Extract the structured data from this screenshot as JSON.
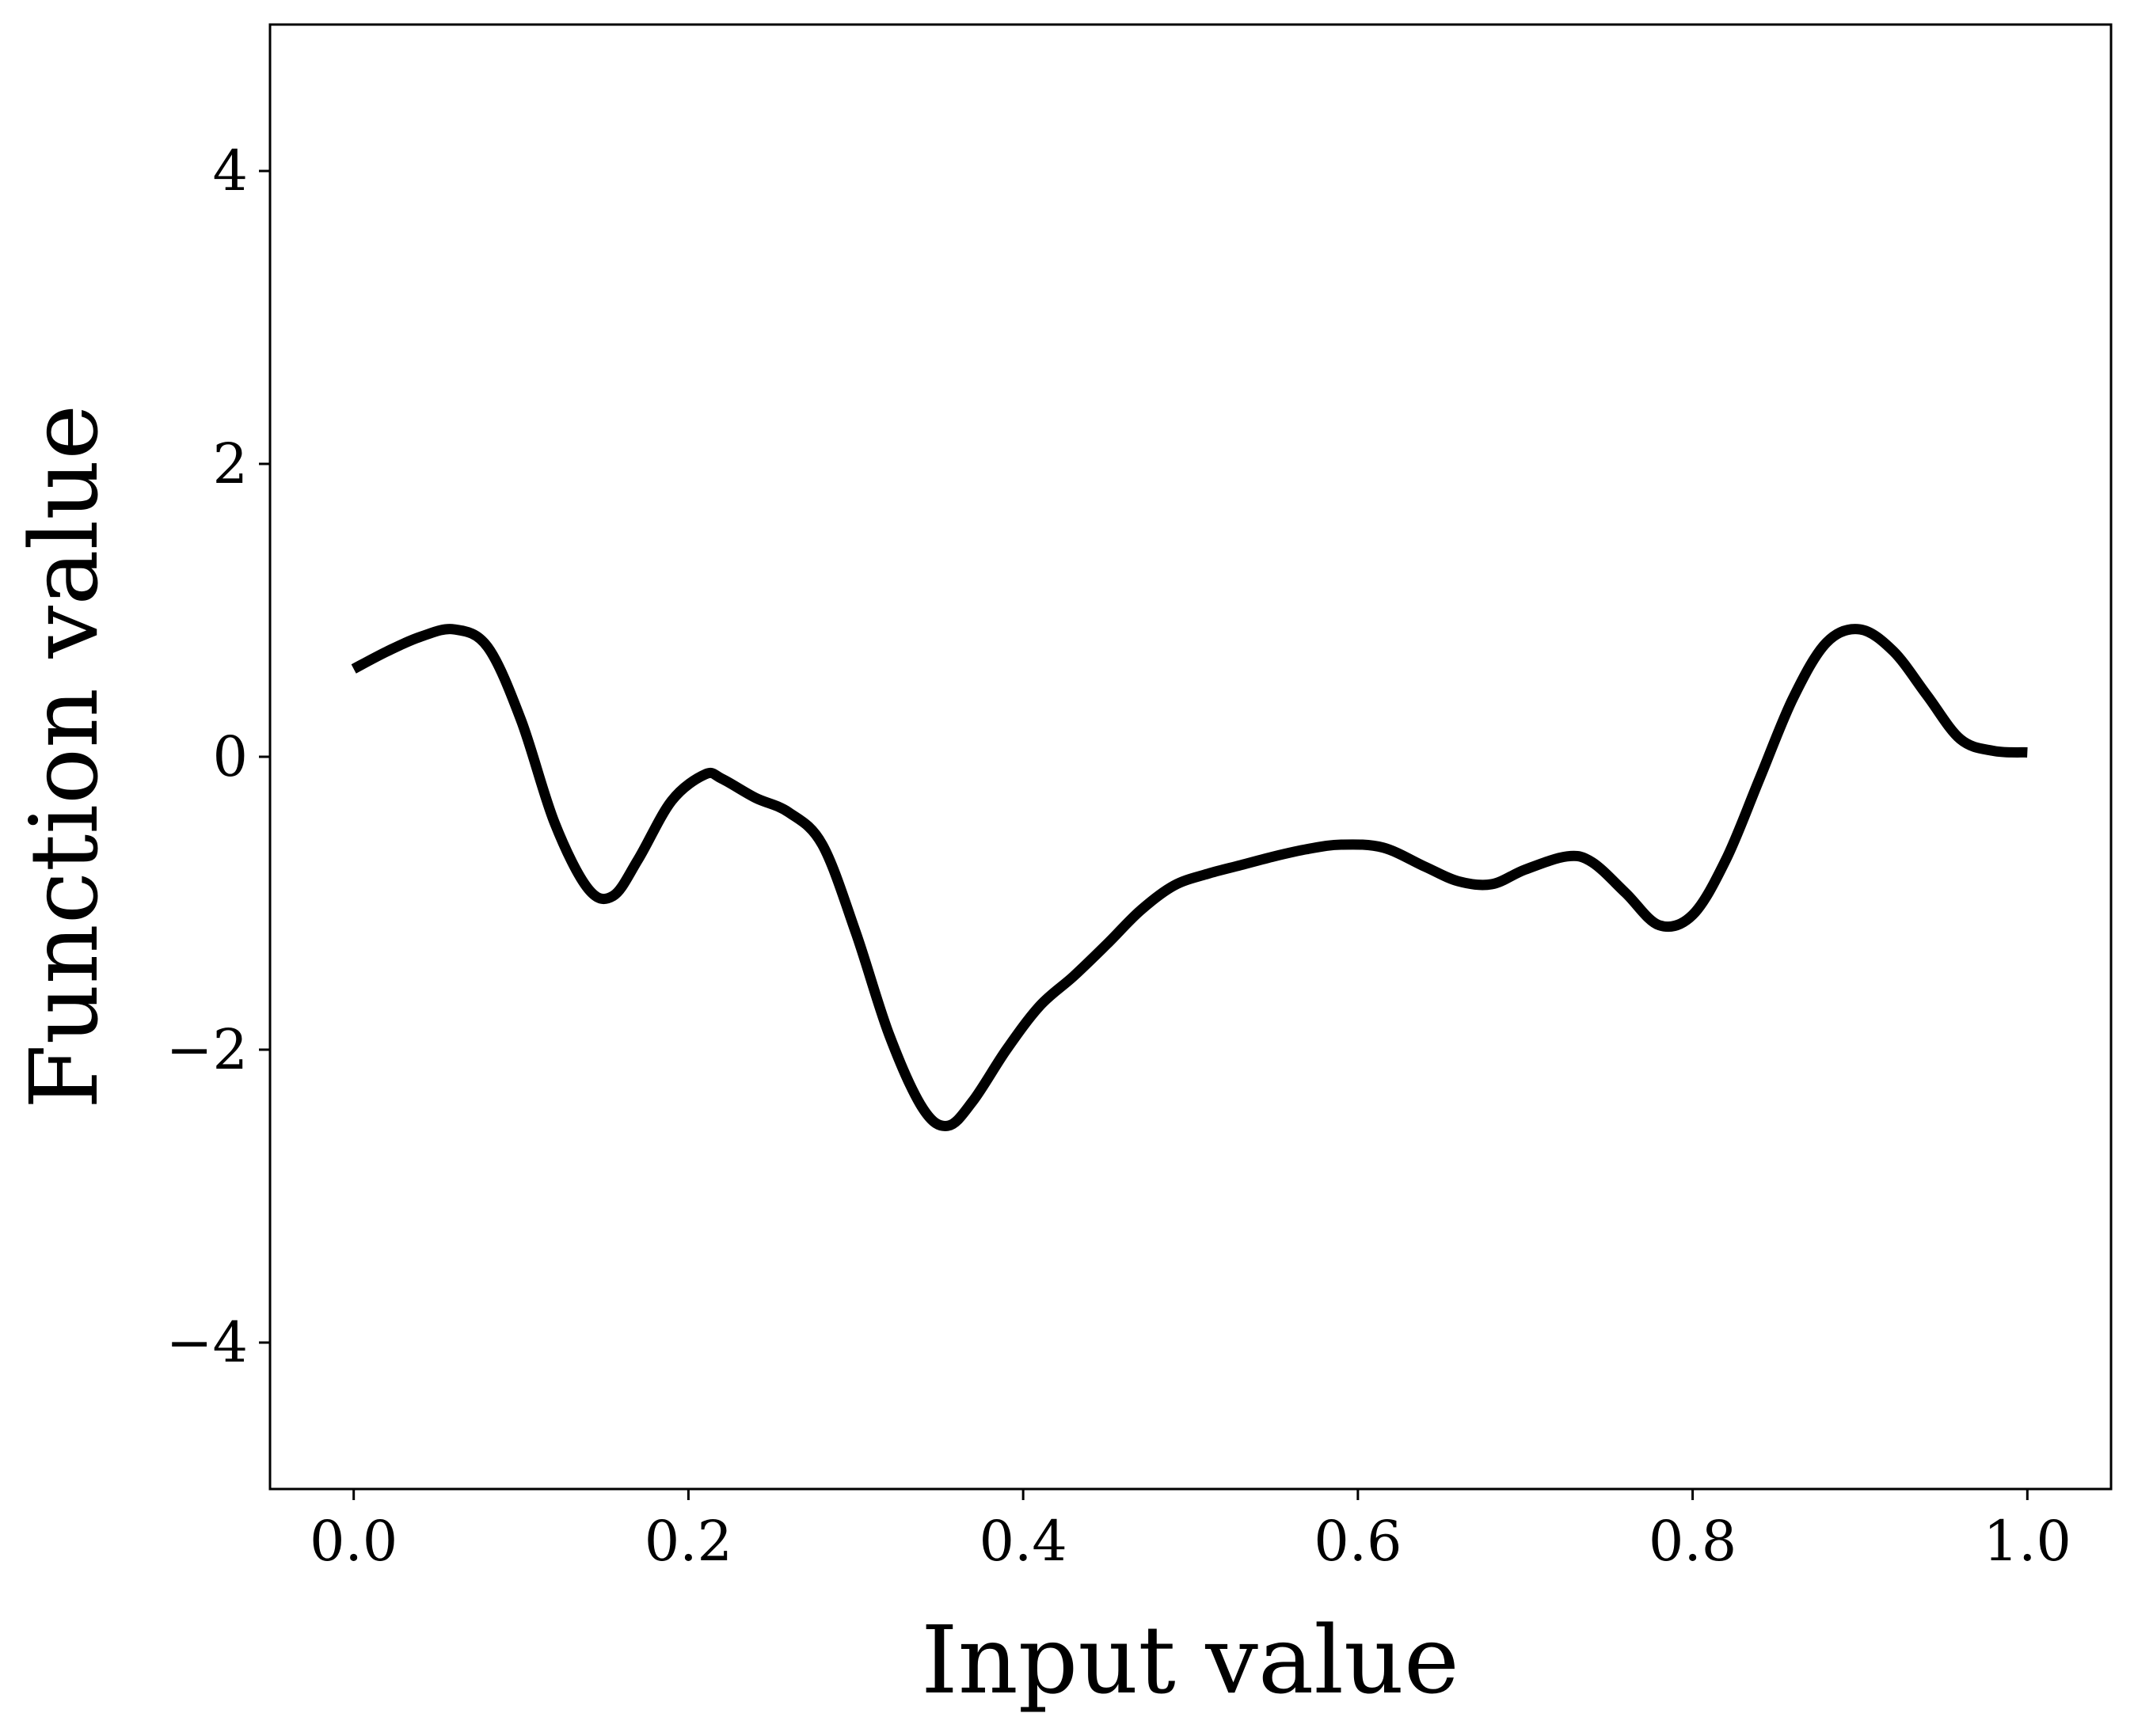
{
  "chart_data": {
    "type": "line",
    "title": "",
    "xlabel": "Input value",
    "ylabel": "Function value",
    "xlim": [
      -0.05,
      1.05
    ],
    "ylim": [
      -5,
      5
    ],
    "xticks": [
      0.0,
      0.2,
      0.4,
      0.6,
      0.8,
      1.0
    ],
    "xtick_labels": [
      "0.0",
      "0.2",
      "0.4",
      "0.6",
      "0.8",
      "1.0"
    ],
    "yticks": [
      -4,
      -2,
      0,
      2,
      4
    ],
    "ytick_labels": [
      "−4",
      "−2",
      "0",
      "2",
      "4"
    ],
    "grid": false,
    "legend": "none",
    "series": [
      {
        "color": "#000000",
        "x": [
          0.0,
          0.02,
          0.04,
          0.06,
          0.08,
          0.1,
          0.12,
          0.14,
          0.155,
          0.17,
          0.19,
          0.21,
          0.22,
          0.24,
          0.26,
          0.28,
          0.3,
          0.32,
          0.34,
          0.355,
          0.37,
          0.39,
          0.41,
          0.43,
          0.45,
          0.47,
          0.49,
          0.51,
          0.53,
          0.55,
          0.57,
          0.59,
          0.615,
          0.64,
          0.66,
          0.68,
          0.7,
          0.725,
          0.74,
          0.76,
          0.78,
          0.8,
          0.82,
          0.84,
          0.86,
          0.88,
          0.9,
          0.92,
          0.94,
          0.96,
          0.98,
          1.0
        ],
        "y": [
          0.6,
          0.72,
          0.82,
          0.87,
          0.75,
          0.25,
          -0.45,
          -0.9,
          -0.95,
          -0.7,
          -0.3,
          -0.12,
          -0.15,
          -0.28,
          -0.38,
          -0.6,
          -1.2,
          -1.9,
          -2.4,
          -2.52,
          -2.35,
          -2.0,
          -1.7,
          -1.5,
          -1.28,
          -1.05,
          -0.88,
          -0.8,
          -0.74,
          -0.68,
          -0.63,
          -0.6,
          -0.62,
          -0.75,
          -0.85,
          -0.87,
          -0.77,
          -0.68,
          -0.72,
          -0.93,
          -1.15,
          -1.08,
          -0.7,
          -0.15,
          0.4,
          0.78,
          0.87,
          0.72,
          0.42,
          0.12,
          0.04,
          0.03
        ]
      }
    ]
  }
}
